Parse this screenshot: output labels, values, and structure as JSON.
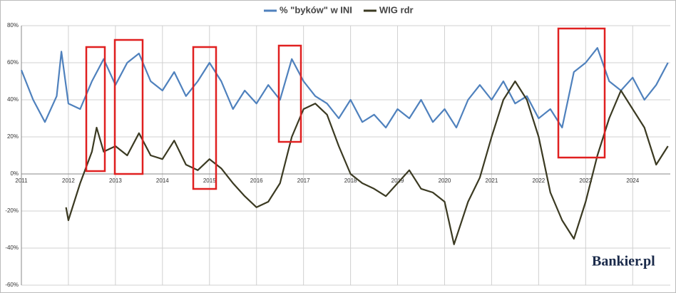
{
  "chart_data": {
    "type": "line",
    "xlim": [
      2011,
      2024.8
    ],
    "xticks": [
      2011,
      2012,
      2013,
      2014,
      2015,
      2016,
      2017,
      2018,
      2019,
      2020,
      2021,
      2022,
      2023,
      2024
    ],
    "ylim": [
      -60,
      80
    ],
    "yticks": [
      {
        "value": -60,
        "label": "-60%"
      },
      {
        "value": -40,
        "label": "-40%"
      },
      {
        "value": -20,
        "label": "-20%"
      },
      {
        "value": 0,
        "label": "0%"
      },
      {
        "value": 20,
        "label": "20%"
      },
      {
        "value": 40,
        "label": "40%"
      },
      {
        "value": 60,
        "label": "60%"
      },
      {
        "value": 80,
        "label": "80%"
      }
    ],
    "grid": true,
    "legend": "top",
    "logo": "Bankier.pl",
    "series": [
      {
        "name": "% \"byków\" w INI",
        "color": "#4f81bd",
        "x": [
          2011,
          2011.25,
          2011.5,
          2011.75,
          2011.85,
          2012,
          2012.25,
          2012.5,
          2012.75,
          2013,
          2013.25,
          2013.5,
          2013.75,
          2014,
          2014.25,
          2014.5,
          2014.75,
          2015,
          2015.25,
          2015.5,
          2015.75,
          2016,
          2016.25,
          2016.5,
          2016.75,
          2017,
          2017.25,
          2017.5,
          2017.75,
          2018,
          2018.25,
          2018.5,
          2018.75,
          2019,
          2019.25,
          2019.5,
          2019.75,
          2020,
          2020.25,
          2020.5,
          2020.75,
          2021,
          2021.25,
          2021.5,
          2021.75,
          2022,
          2022.25,
          2022.5,
          2022.75,
          2023,
          2023.25,
          2023.5,
          2023.75,
          2024,
          2024.25,
          2024.5,
          2024.75
        ],
        "values": [
          56,
          40,
          28,
          42,
          66,
          38,
          35,
          50,
          62,
          48,
          60,
          65,
          50,
          45,
          55,
          42,
          50,
          60,
          50,
          35,
          45,
          38,
          48,
          40,
          62,
          50,
          42,
          38,
          30,
          40,
          28,
          32,
          25,
          35,
          30,
          40,
          28,
          35,
          25,
          40,
          48,
          40,
          50,
          38,
          42,
          30,
          35,
          25,
          55,
          60,
          68,
          50,
          45,
          52,
          40,
          48,
          60
        ]
      },
      {
        "name": "WIG rdr",
        "color": "#3b3a22",
        "x": [
          2011.95,
          2012,
          2012.25,
          2012.5,
          2012.6,
          2012.75,
          2013,
          2013.25,
          2013.5,
          2013.75,
          2014,
          2014.25,
          2014.5,
          2014.75,
          2015,
          2015.25,
          2015.5,
          2015.75,
          2016,
          2016.25,
          2016.5,
          2016.75,
          2017,
          2017.25,
          2017.5,
          2017.75,
          2018,
          2018.25,
          2018.5,
          2018.75,
          2019,
          2019.25,
          2019.5,
          2019.75,
          2020,
          2020.2,
          2020.5,
          2020.75,
          2021,
          2021.25,
          2021.5,
          2021.75,
          2022,
          2022.25,
          2022.5,
          2022.75,
          2023,
          2023.25,
          2023.5,
          2023.75,
          2024,
          2024.25,
          2024.5,
          2024.75
        ],
        "values": [
          -18,
          -25,
          -5,
          12,
          25,
          12,
          15,
          10,
          22,
          10,
          8,
          18,
          5,
          2,
          8,
          3,
          -5,
          -12,
          -18,
          -15,
          -5,
          20,
          35,
          38,
          32,
          15,
          0,
          -5,
          -8,
          -12,
          -5,
          2,
          -8,
          -10,
          -15,
          -38,
          -15,
          -2,
          20,
          40,
          50,
          40,
          20,
          -10,
          -25,
          -35,
          -15,
          10,
          30,
          45,
          35,
          25,
          5,
          15
        ]
      }
    ]
  }
}
